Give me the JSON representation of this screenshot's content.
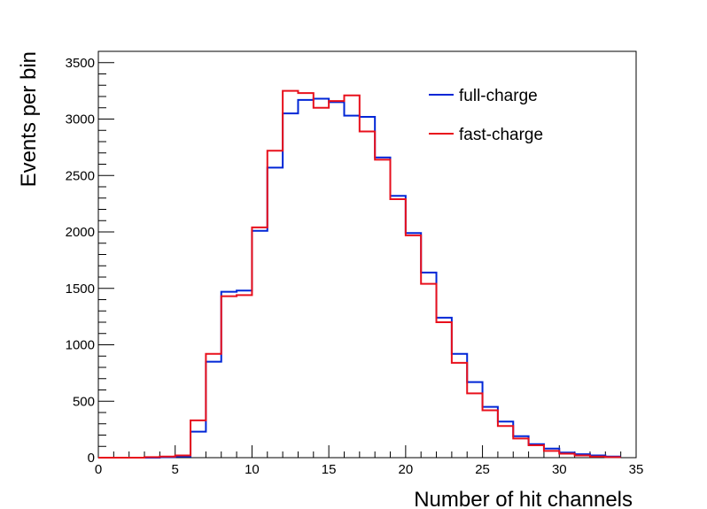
{
  "chart_data": {
    "type": "line",
    "style": "step-histogram",
    "xlabel": "Number of hit channels",
    "ylabel": "Events per bin",
    "xlim": [
      0,
      35
    ],
    "ylim": [
      0,
      3600
    ],
    "bin_width": 1,
    "x_ticks": [
      0,
      5,
      10,
      15,
      20,
      25,
      30,
      35
    ],
    "y_ticks": [
      0,
      500,
      1000,
      1500,
      2000,
      2500,
      3000,
      3500
    ],
    "grid": false,
    "legend_position": "top-right",
    "bin_edges_start": [
      0,
      1,
      2,
      3,
      4,
      5,
      6,
      7,
      8,
      9,
      10,
      11,
      12,
      13,
      14,
      15,
      16,
      17,
      18,
      19,
      20,
      21,
      22,
      23,
      24,
      25,
      26,
      27,
      28,
      29,
      30,
      31,
      32,
      33
    ],
    "series": [
      {
        "name": "full-charge",
        "color": "#0026d6",
        "values": [
          0,
          0,
          0,
          0,
          5,
          10,
          230,
          850,
          1470,
          1480,
          2010,
          2570,
          3050,
          3170,
          3180,
          3150,
          3030,
          3020,
          2660,
          2320,
          1990,
          1640,
          1240,
          920,
          670,
          450,
          320,
          190,
          120,
          80,
          45,
          30,
          20,
          10
        ]
      },
      {
        "name": "fast-charge",
        "color": "#e8101c",
        "values": [
          0,
          0,
          0,
          5,
          10,
          20,
          330,
          920,
          1430,
          1440,
          2040,
          2720,
          3250,
          3230,
          3100,
          3160,
          3210,
          2890,
          2640,
          2290,
          1970,
          1540,
          1200,
          840,
          570,
          420,
          280,
          170,
          110,
          60,
          35,
          20,
          10,
          5
        ]
      }
    ]
  }
}
